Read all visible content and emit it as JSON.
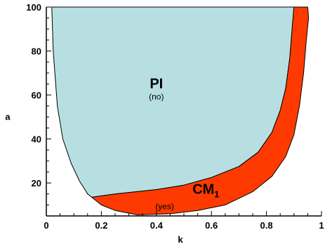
{
  "chart_data": {
    "type": "area",
    "title": "",
    "xlabel": "k",
    "ylabel": "a",
    "xlim": [
      0,
      1
    ],
    "ylim": [
      5,
      100
    ],
    "x_ticks": [
      0,
      0.2,
      0.4,
      0.6,
      0.8,
      1
    ],
    "x_tick_labels": [
      "0",
      "0.2",
      "0.4",
      "0.6",
      "0.8",
      "1"
    ],
    "y_ticks": [
      20,
      40,
      60,
      80,
      100
    ],
    "y_tick_labels": [
      "20",
      "40",
      "60",
      "80",
      "100"
    ],
    "grid": false,
    "legend": "none",
    "regions": [
      {
        "name": "PI",
        "sublabel": "(no)",
        "color": "#b7dfe1",
        "label_pos": [
          0.4,
          63
        ],
        "sublabel_pos": [
          0.4,
          58
        ],
        "boundary": [
          [
            0.02,
            100
          ],
          [
            0.025,
            80
          ],
          [
            0.04,
            55
          ],
          [
            0.06,
            40
          ],
          [
            0.09,
            29
          ],
          [
            0.12,
            21
          ],
          [
            0.15,
            15
          ],
          [
            0.165,
            13.5
          ],
          [
            0.25,
            15
          ],
          [
            0.4,
            17
          ],
          [
            0.5,
            19
          ],
          [
            0.6,
            22.5
          ],
          [
            0.7,
            27.5
          ],
          [
            0.77,
            34
          ],
          [
            0.82,
            43
          ],
          [
            0.85,
            53
          ],
          [
            0.87,
            63
          ],
          [
            0.885,
            77
          ],
          [
            0.893,
            90
          ],
          [
            0.9,
            100
          ]
        ]
      },
      {
        "name": "CM",
        "name_subscript": "1",
        "sublabel": "(yes)",
        "color": "#ff3a00",
        "label_pos": [
          0.58,
          15
        ],
        "sublabel_pos": [
          0.43,
          8
        ],
        "boundary": [
          [
            0.165,
            13.5
          ],
          [
            0.25,
            15
          ],
          [
            0.4,
            17
          ],
          [
            0.5,
            19
          ],
          [
            0.6,
            22.5
          ],
          [
            0.7,
            27.5
          ],
          [
            0.77,
            34
          ],
          [
            0.82,
            43
          ],
          [
            0.85,
            53
          ],
          [
            0.87,
            63
          ],
          [
            0.885,
            77
          ],
          [
            0.893,
            90
          ],
          [
            0.9,
            100
          ],
          [
            0.95,
            100
          ],
          [
            0.953,
            95
          ],
          [
            0.945,
            85
          ],
          [
            0.935,
            70
          ],
          [
            0.92,
            55
          ],
          [
            0.9,
            42
          ],
          [
            0.87,
            32
          ],
          [
            0.82,
            23
          ],
          [
            0.75,
            16
          ],
          [
            0.65,
            10
          ],
          [
            0.55,
            7.5
          ],
          [
            0.45,
            6
          ],
          [
            0.33,
            5.5
          ],
          [
            0.25,
            7.5
          ],
          [
            0.2,
            10
          ]
        ]
      }
    ]
  }
}
